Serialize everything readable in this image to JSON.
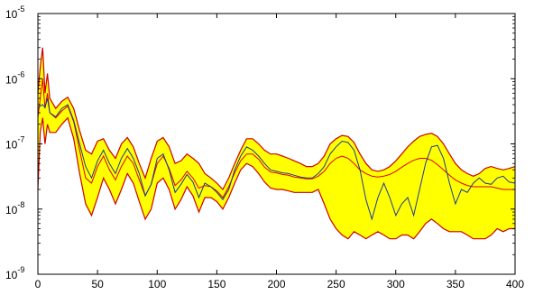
{
  "chart_data": {
    "type": "area",
    "x_scale": "linear",
    "y_scale": "log",
    "xlim": [
      0,
      400
    ],
    "ylim": [
      1e-09,
      1e-05
    ],
    "x_ticks": [
      0,
      50,
      100,
      150,
      200,
      250,
      300,
      350,
      400
    ],
    "y_ticks": [
      {
        "value": 1e-09,
        "base": "10",
        "exp": "-9"
      },
      {
        "value": 1e-08,
        "base": "10",
        "exp": "-8"
      },
      {
        "value": 1e-07,
        "base": "10",
        "exp": "-7"
      },
      {
        "value": 1e-06,
        "base": "10",
        "exp": "-6"
      },
      {
        "value": 1e-05,
        "base": "10",
        "exp": "-5"
      }
    ],
    "grid": false,
    "colors": {
      "band_fill": "#ffff00",
      "band_edge": "#cc0000",
      "mean_line": "#e00000",
      "sample_line": "#1a3a9a",
      "axis": "#000000"
    },
    "x": [
      0,
      2,
      4,
      6,
      8,
      10,
      15,
      20,
      25,
      30,
      35,
      40,
      45,
      50,
      55,
      60,
      65,
      70,
      75,
      80,
      85,
      90,
      95,
      100,
      105,
      110,
      115,
      120,
      125,
      130,
      135,
      140,
      145,
      150,
      155,
      160,
      165,
      170,
      175,
      180,
      185,
      190,
      195,
      200,
      205,
      210,
      215,
      220,
      225,
      230,
      235,
      240,
      245,
      250,
      255,
      260,
      265,
      270,
      275,
      280,
      285,
      290,
      295,
      300,
      305,
      310,
      315,
      320,
      325,
      330,
      335,
      340,
      345,
      350,
      355,
      360,
      365,
      370,
      375,
      380,
      385,
      390,
      395,
      400
    ],
    "series": [
      {
        "role": "band_upper",
        "values": [
          6e-07,
          1.5e-06,
          3e-06,
          6e-07,
          1.2e-06,
          5e-07,
          3.5e-07,
          4.5e-07,
          5.2e-07,
          3.5e-07,
          1.6e-07,
          8e-08,
          7e-08,
          1.1e-07,
          1.2e-07,
          8e-08,
          6e-08,
          1e-07,
          1.25e-07,
          9e-08,
          5e-08,
          3e-08,
          6e-08,
          1.1e-07,
          1.25e-07,
          9e-08,
          5e-08,
          5.5e-08,
          7e-08,
          6e-08,
          5e-08,
          3.5e-08,
          3e-08,
          2.5e-08,
          2e-08,
          3e-08,
          5e-08,
          8e-08,
          1.2e-07,
          1.2e-07,
          1e-07,
          8e-08,
          7e-08,
          7e-08,
          6.5e-08,
          6e-08,
          5.5e-08,
          5e-08,
          4.5e-08,
          4.5e-08,
          5e-08,
          6.5e-08,
          1e-07,
          1.2e-07,
          1.35e-07,
          1.3e-07,
          1.05e-07,
          7e-08,
          5e-08,
          4e-08,
          3.8e-08,
          4e-08,
          4.5e-08,
          5.5e-08,
          7e-08,
          9e-08,
          1.1e-07,
          1.3e-07,
          1.4e-07,
          1.45e-07,
          1.3e-07,
          1e-07,
          7e-08,
          5e-08,
          4e-08,
          3.5e-08,
          3.2e-08,
          3.5e-08,
          4.2e-08,
          4.5e-08,
          4.2e-08,
          4e-08,
          4.2e-08,
          4.5e-08
        ]
      },
      {
        "role": "band_lower",
        "values": [
          2e-08,
          1.5e-07,
          2.5e-07,
          1e-07,
          2e-07,
          1.5e-07,
          1.5e-07,
          2e-07,
          2.5e-07,
          1.2e-07,
          3.5e-08,
          1.2e-08,
          8e-09,
          1.5e-08,
          3e-08,
          2e-08,
          1.2e-08,
          2e-08,
          3.5e-08,
          2.5e-08,
          1.3e-08,
          7e-09,
          1e-08,
          2.5e-08,
          3e-08,
          2e-08,
          1e-08,
          1.4e-08,
          2.2e-08,
          1.6e-08,
          9e-09,
          1.5e-08,
          1.5e-08,
          1.3e-08,
          1e-08,
          1.5e-08,
          2.5e-08,
          4e-08,
          5e-08,
          4.5e-08,
          3.5e-08,
          2.6e-08,
          2.1e-08,
          2e-08,
          2e-08,
          1.9e-08,
          1.8e-08,
          1.8e-08,
          1.8e-08,
          1.8e-08,
          2e-08,
          1.2e-08,
          7e-09,
          5e-09,
          4e-09,
          3.5e-09,
          4.5e-09,
          4e-09,
          3.5e-09,
          4e-09,
          4.5e-09,
          4e-09,
          3.5e-09,
          3.5e-09,
          4e-09,
          4e-09,
          3.5e-09,
          4.5e-09,
          6e-09,
          7e-09,
          6e-09,
          5e-09,
          4.5e-09,
          4.5e-09,
          4.5e-09,
          4e-09,
          3.5e-09,
          3.5e-09,
          3.5e-09,
          4e-09,
          5e-09,
          4.5e-09,
          5e-09,
          5e-09
        ]
      },
      {
        "role": "mean",
        "values": [
          2.5e-07,
          5e-07,
          1e-06,
          3.5e-07,
          6e-07,
          3e-07,
          2.5e-07,
          3.2e-07,
          3.8e-07,
          2.2e-07,
          8e-08,
          3e-08,
          2.5e-08,
          4.5e-08,
          6.5e-08,
          4e-08,
          2.8e-08,
          4.5e-08,
          6.5e-08,
          5e-08,
          2.8e-08,
          1.6e-08,
          2.4e-08,
          5e-08,
          6.5e-08,
          4.2e-08,
          2.3e-08,
          2.8e-08,
          3.8e-08,
          3e-08,
          2.1e-08,
          2.3e-08,
          2.2e-08,
          1.9e-08,
          1.5e-08,
          2.2e-08,
          3.6e-08,
          5.5e-08,
          7e-08,
          7e-08,
          5.8e-08,
          4.4e-08,
          3.7e-08,
          3.6e-08,
          3.4e-08,
          3.3e-08,
          3.1e-08,
          3e-08,
          2.9e-08,
          2.9e-08,
          3.2e-08,
          3.8e-08,
          5e-08,
          6e-08,
          6.5e-08,
          6e-08,
          5e-08,
          4e-08,
          3.5e-08,
          3.2e-08,
          3.1e-08,
          3.2e-08,
          3.4e-08,
          3.8e-08,
          4.4e-08,
          5e-08,
          5.6e-08,
          6e-08,
          6e-08,
          5.6e-08,
          4.8e-08,
          4e-08,
          3.3e-08,
          2.8e-08,
          2.5e-08,
          2.3e-08,
          2.2e-08,
          2.2e-08,
          2.2e-08,
          2.2e-08,
          2.1e-08,
          2e-08,
          2e-08,
          2e-08
        ]
      },
      {
        "role": "sample",
        "values": [
          3.5e-07,
          3.8e-07,
          4e-07,
          3.6e-07,
          5e-07,
          3e-07,
          2.6e-07,
          3.5e-07,
          4e-07,
          2.3e-07,
          1e-07,
          4.5e-08,
          3e-08,
          5.5e-08,
          8e-08,
          5e-08,
          3.5e-08,
          6e-08,
          8.5e-08,
          6e-08,
          3.5e-08,
          1.6e-08,
          2.4e-08,
          6e-08,
          7e-08,
          4e-08,
          1.8e-08,
          2.4e-08,
          3.4e-08,
          2.6e-08,
          1.5e-08,
          2.5e-08,
          2.2e-08,
          1.8e-08,
          1.4e-08,
          2e-08,
          4e-08,
          6.5e-08,
          9e-08,
          8e-08,
          6.5e-08,
          5e-08,
          4e-08,
          3.8e-08,
          3.6e-08,
          3.5e-08,
          3.3e-08,
          3.1e-08,
          3e-08,
          3e-08,
          3.5e-08,
          4.5e-08,
          7e-08,
          9e-08,
          1.1e-07,
          1.05e-07,
          8e-08,
          4e-08,
          1.4e-08,
          7e-09,
          1.5e-08,
          2.5e-08,
          1.5e-08,
          8e-09,
          1.2e-08,
          1.5e-08,
          8e-09,
          2e-08,
          5e-08,
          9e-08,
          9.5e-08,
          6e-08,
          2.5e-08,
          1.2e-08,
          2e-08,
          1.8e-08,
          2.5e-08,
          3e-08,
          2.5e-08,
          2.4e-08,
          3e-08,
          3.2e-08,
          2.6e-08,
          2.5e-08
        ]
      }
    ]
  }
}
